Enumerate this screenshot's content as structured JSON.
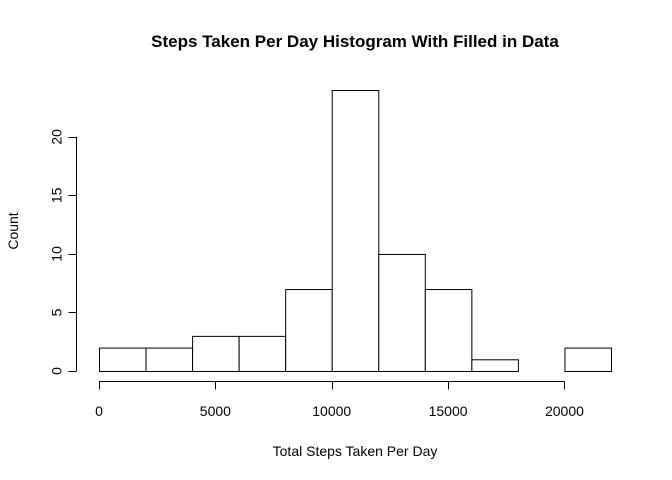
{
  "chart_data": {
    "type": "bar",
    "title": "Steps Taken Per Day Histogram With Filled in Data",
    "xlabel": "Total Steps Taken Per Day",
    "ylabel": "Count",
    "bins": [
      {
        "from": 0,
        "to": 2000,
        "count": 2
      },
      {
        "from": 2000,
        "to": 4000,
        "count": 2
      },
      {
        "from": 4000,
        "to": 6000,
        "count": 3
      },
      {
        "from": 6000,
        "to": 8000,
        "count": 3
      },
      {
        "from": 8000,
        "to": 10000,
        "count": 7
      },
      {
        "from": 10000,
        "to": 12000,
        "count": 24
      },
      {
        "from": 12000,
        "to": 14000,
        "count": 10
      },
      {
        "from": 14000,
        "to": 16000,
        "count": 7
      },
      {
        "from": 16000,
        "to": 18000,
        "count": 1
      },
      {
        "from": 18000,
        "to": 20000,
        "count": 0
      },
      {
        "from": 20000,
        "to": 22000,
        "count": 2
      }
    ],
    "xlim": [
      0,
      22000
    ],
    "ylim": [
      0,
      24
    ],
    "x_ticks": [
      0,
      5000,
      10000,
      15000,
      20000
    ],
    "y_ticks": [
      0,
      5,
      10,
      15,
      20
    ],
    "grid": false,
    "legend": "none"
  }
}
